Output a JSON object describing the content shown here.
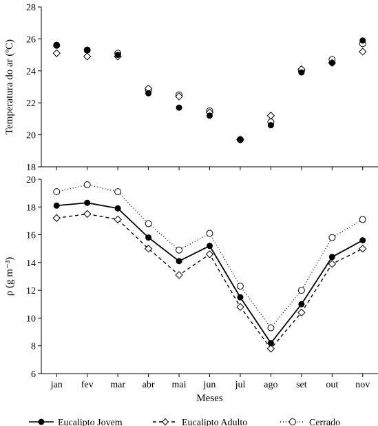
{
  "months": [
    "jan",
    "fev",
    "mar",
    "abr",
    "mai",
    "jun",
    "jul",
    "ago",
    "set",
    "out",
    "nov"
  ],
  "x_axis_label": "Meses",
  "top_chart": {
    "type": "scatter",
    "y_label": "Temperatura do ar (ºC)",
    "label_fontsize": 15,
    "tick_fontsize": 14,
    "ylim": [
      18,
      28
    ],
    "ytick_step": 2,
    "x_categories": [
      "jan",
      "fev",
      "mar",
      "abr",
      "mai",
      "jun",
      "jul",
      "ago",
      "set",
      "out",
      "nov"
    ],
    "background_color": "#ffffff",
    "axis_color": "#000000",
    "series": {
      "jovem": {
        "label": "Eucalipto Jovem",
        "values": [
          25.6,
          25.3,
          25.0,
          22.6,
          21.7,
          21.2,
          19.7,
          20.6,
          23.9,
          24.5,
          25.9
        ],
        "marker": "filled-circle",
        "marker_size": 4.5,
        "color": "#000000"
      },
      "adulto": {
        "label": "Eucalipto Adulto",
        "values": [
          25.1,
          24.9,
          24.9,
          22.9,
          22.4,
          21.4,
          19.7,
          21.2,
          24.1,
          24.5,
          25.2
        ],
        "marker": "open-diamond",
        "marker_size": 5,
        "color": "#000000",
        "fill": "#ffffff"
      },
      "cerrado": {
        "label": "Cerrado",
        "values": [
          25.6,
          25.3,
          25.1,
          22.8,
          22.5,
          21.5,
          19.7,
          20.8,
          24.0,
          24.7,
          25.7
        ],
        "marker": "open-circle",
        "marker_size": 4.5,
        "color": "#000000",
        "fill": "#ffffff"
      }
    }
  },
  "bottom_chart": {
    "type": "line",
    "y_label": "ρ (g  m⁻³)",
    "label_fontsize": 15,
    "tick_fontsize": 14,
    "ylim": [
      6,
      20
    ],
    "ytick_step": 2,
    "x_categories": [
      "jan",
      "fev",
      "mar",
      "abr",
      "mai",
      "jun",
      "jul",
      "ago",
      "set",
      "out",
      "nov"
    ],
    "background_color": "#ffffff",
    "axis_color": "#000000",
    "series": {
      "jovem": {
        "label": "Eucalipto Jovem",
        "values": [
          18.1,
          18.3,
          17.9,
          15.8,
          14.1,
          15.2,
          11.5,
          8.2,
          11.0,
          14.4,
          15.6
        ],
        "marker": "filled-circle",
        "marker_size": 4.5,
        "line_style": "solid",
        "line_width": 1.8,
        "color": "#000000"
      },
      "adulto": {
        "label": "Eucalipto Adulto",
        "values": [
          17.2,
          17.5,
          17.1,
          15.0,
          13.1,
          14.6,
          10.8,
          7.8,
          10.4,
          13.9,
          15.0
        ],
        "marker": "open-diamond",
        "marker_size": 5,
        "line_style": "dashed",
        "dash_pattern": "5,4",
        "line_width": 1.4,
        "color": "#000000",
        "fill": "#ffffff"
      },
      "cerrado": {
        "label": "Cerrado",
        "values": [
          19.1,
          19.6,
          19.1,
          16.8,
          14.9,
          16.1,
          12.3,
          9.3,
          12.0,
          15.8,
          17.1
        ],
        "marker": "open-circle",
        "marker_size": 4.5,
        "line_style": "dotted",
        "dash_pattern": "1,3",
        "line_width": 1.3,
        "color": "#000000",
        "fill": "#ffffff"
      }
    }
  },
  "legend": {
    "items": [
      {
        "key": "jovem",
        "label": "Eucalipto Jovem",
        "line_style": "solid",
        "dash_pattern": "",
        "marker": "filled-circle"
      },
      {
        "key": "adulto",
        "label": "Eucalipto Adulto",
        "line_style": "dashed",
        "dash_pattern": "5,4",
        "marker": "open-diamond"
      },
      {
        "key": "cerrado",
        "label": "Cerrado",
        "line_style": "dotted",
        "dash_pattern": "1,3",
        "marker": "open-circle"
      }
    ],
    "fontsize": 14
  }
}
